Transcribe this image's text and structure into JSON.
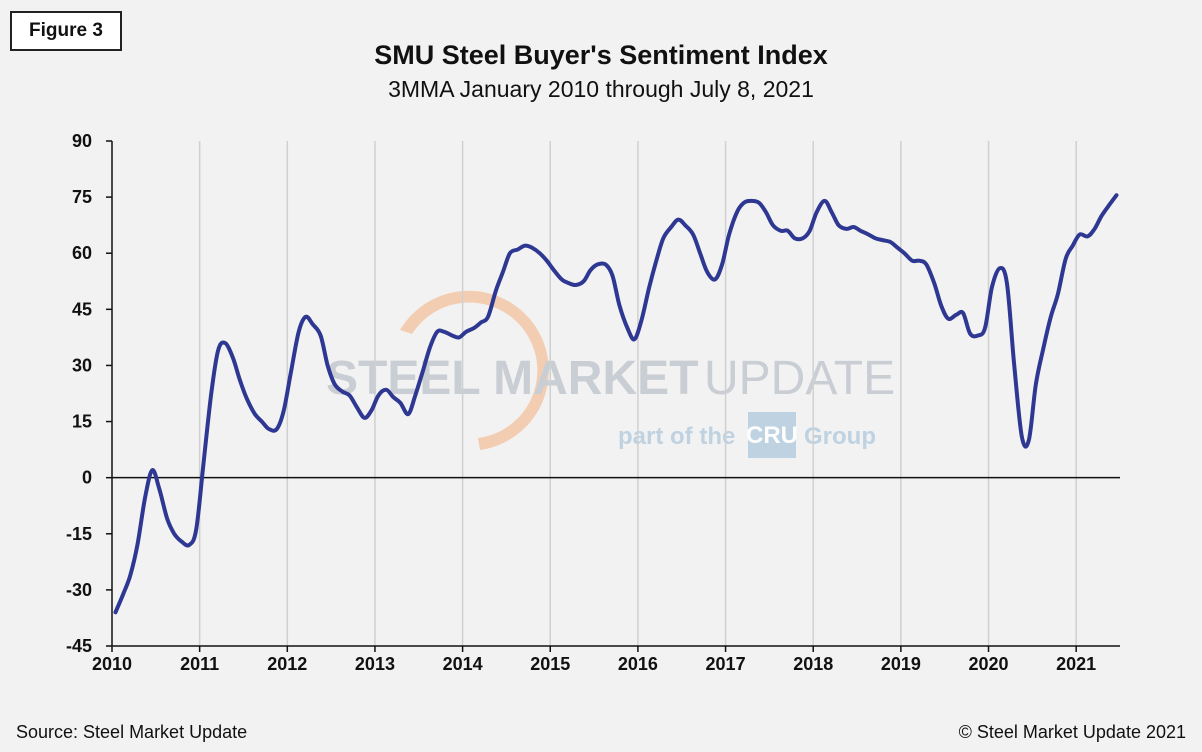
{
  "figure_label": "Figure 3",
  "source": "Source: Steel Market Update",
  "copyright": "© Steel Market Update 2021",
  "watermark": {
    "brand_bold": "STEEL MARKET",
    "brand_light": "UPDATE",
    "part_of": "part of the",
    "cru": "CRU",
    "group": "Group"
  },
  "colors": {
    "line": "#2e3892",
    "grid": "#d0d0d0",
    "zero_line": "#111111",
    "watermark_text": "#c3c8cf",
    "watermark_blue": "#b5cde0",
    "watermark_orange": "#f4c7a8"
  },
  "chart_data": {
    "type": "line",
    "title": "SMU Steel Buyer's Sentiment Index",
    "subtitle": "3MMA January 2010 through July 8, 2021",
    "xlabel": "",
    "ylabel": "",
    "ylim": [
      -45,
      90
    ],
    "yticks": [
      -45,
      -30,
      -15,
      0,
      15,
      30,
      45,
      60,
      75,
      90
    ],
    "xlim": [
      2010,
      2021.5
    ],
    "xticks": [
      2010,
      2011,
      2012,
      2013,
      2014,
      2015,
      2016,
      2017,
      2018,
      2019,
      2020,
      2021
    ],
    "grid": "vertical",
    "legend": "none",
    "series": [
      {
        "x": [
          2010.04,
          2010.13,
          2010.21,
          2010.29,
          2010.38,
          2010.46,
          2010.54,
          2010.63,
          2010.71,
          2010.79,
          2010.88,
          2010.96,
          2011.04,
          2011.13,
          2011.21,
          2011.29,
          2011.38,
          2011.46,
          2011.54,
          2011.63,
          2011.71,
          2011.79,
          2011.88,
          2011.96,
          2012.04,
          2012.13,
          2012.21,
          2012.29,
          2012.38,
          2012.46,
          2012.54,
          2012.63,
          2012.71,
          2012.79,
          2012.88,
          2012.96,
          2013.04,
          2013.13,
          2013.21,
          2013.29,
          2013.38,
          2013.46,
          2013.54,
          2013.63,
          2013.71,
          2013.79,
          2013.88,
          2013.96,
          2014.04,
          2014.13,
          2014.21,
          2014.29,
          2014.38,
          2014.46,
          2014.54,
          2014.63,
          2014.71,
          2014.79,
          2014.88,
          2014.96,
          2015.04,
          2015.13,
          2015.21,
          2015.29,
          2015.38,
          2015.46,
          2015.54,
          2015.63,
          2015.71,
          2015.79,
          2015.88,
          2015.96,
          2016.04,
          2016.13,
          2016.21,
          2016.29,
          2016.38,
          2016.46,
          2016.54,
          2016.63,
          2016.71,
          2016.79,
          2016.88,
          2016.96,
          2017.04,
          2017.13,
          2017.21,
          2017.29,
          2017.38,
          2017.46,
          2017.54,
          2017.63,
          2017.71,
          2017.79,
          2017.88,
          2017.96,
          2018.04,
          2018.13,
          2018.21,
          2018.29,
          2018.38,
          2018.46,
          2018.54,
          2018.63,
          2018.71,
          2018.79,
          2018.88,
          2018.96,
          2019.04,
          2019.13,
          2019.21,
          2019.29,
          2019.38,
          2019.46,
          2019.54,
          2019.63,
          2019.71,
          2019.79,
          2019.88,
          2019.96,
          2020.04,
          2020.13,
          2020.21,
          2020.29,
          2020.38,
          2020.46,
          2020.54,
          2020.63,
          2020.71,
          2020.79,
          2020.88,
          2020.96,
          2021.04,
          2021.13,
          2021.21,
          2021.29,
          2021.38,
          2021.46
        ],
        "values": [
          -36,
          -31,
          -26,
          -18,
          -5,
          2,
          -3,
          -11,
          -15,
          -17,
          -18,
          -14,
          3,
          22,
          34,
          36,
          32,
          26,
          21,
          17,
          15,
          13,
          13,
          18,
          28,
          39,
          43,
          41,
          38,
          30,
          25,
          23,
          22,
          19,
          16,
          18,
          22,
          23.5,
          21.5,
          20,
          17,
          22,
          28,
          35,
          39,
          39,
          38,
          37.5,
          39,
          40,
          41.5,
          43,
          50,
          55,
          60,
          61,
          62,
          61.5,
          60,
          58,
          55.5,
          53,
          52,
          51.5,
          52.5,
          55.5,
          57,
          57,
          54,
          46,
          40,
          37,
          42,
          51,
          58,
          64,
          67,
          69,
          67.5,
          65,
          60,
          55,
          53,
          57,
          65,
          71,
          73.5,
          74,
          73.5,
          71,
          67.5,
          66,
          66,
          64,
          64,
          66,
          71,
          74,
          71,
          67.5,
          66.5,
          67,
          66,
          65,
          64,
          63.5,
          63,
          61.5,
          60,
          58,
          58,
          57,
          52,
          46,
          42.5,
          43.5,
          44,
          38.5,
          38,
          40,
          51,
          56,
          52,
          31,
          11,
          10,
          25,
          35,
          43,
          49,
          58.5,
          62,
          65,
          64.5,
          66.5,
          70,
          73,
          75.5
        ]
      }
    ]
  }
}
